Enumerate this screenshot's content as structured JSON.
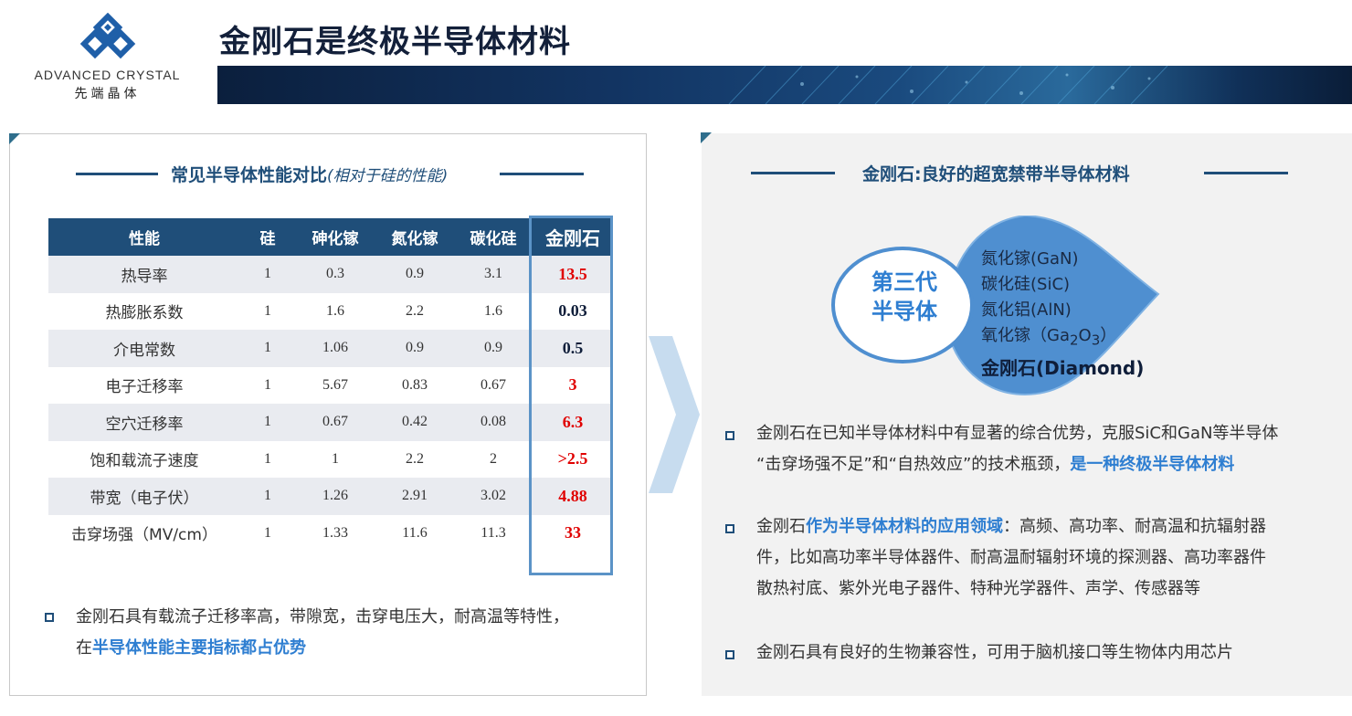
{
  "logo": {
    "en": "ADVANCED CRYSTAL",
    "cn": "先端晶体"
  },
  "title": "金刚石是终极半导体材料",
  "left": {
    "section_title": "常见半导体性能对比",
    "section_title_note": "(相对于硅的性能)",
    "table": {
      "headers": [
        "性能",
        "硅",
        "砷化镓",
        "氮化镓",
        "碳化硅",
        "金刚石"
      ],
      "rows": [
        [
          "热导率",
          "1",
          "0.3",
          "0.9",
          "3.1",
          "13.5"
        ],
        [
          "热膨胀系数",
          "1",
          "1.6",
          "2.2",
          "1.6",
          "0.03"
        ],
        [
          "介电常数",
          "1",
          "1.06",
          "0.9",
          "0.9",
          "0.5"
        ],
        [
          "电子迁移率",
          "1",
          "5.67",
          "0.83",
          "0.67",
          "3"
        ],
        [
          "空穴迁移率",
          "1",
          "0.67",
          "0.42",
          "0.08",
          "6.3"
        ],
        [
          "饱和载流子速度",
          "1",
          "1",
          "2.2",
          "2",
          ">2.5"
        ],
        [
          "带宽（电子伏）",
          "1",
          "1.26",
          "2.91",
          "3.02",
          "4.88"
        ],
        [
          "击穿场强（MV/cm）",
          "1",
          "1.33",
          "11.6",
          "11.3",
          "33"
        ]
      ],
      "diamond_colors": [
        "#e00000",
        "#0f1e3a",
        "#0f1e3a",
        "#e00000",
        "#e00000",
        "#e00000",
        "#e00000",
        "#e00000"
      ]
    },
    "bullet": {
      "text1": "金刚石具有载流子迁移率高，带隙宽，击穿电压大，耐高温等特性，",
      "text2_prefix": "在",
      "text2_highlight": "半导体性能主要指标都占优势"
    }
  },
  "right": {
    "section_title": "金刚石:良好的超宽禁带半导体材料",
    "generation_label_1": "第三代",
    "generation_label_2": "半导体",
    "materials": [
      "氮化镓(GaN)",
      "碳化硅(SiC)",
      "氮化铝(AlN)"
    ],
    "ga2o3_prefix": "氧化镓（Ga",
    "ga2o3_sub1": "2",
    "ga2o3_mid": "O",
    "ga2o3_sub2": "3",
    "ga2o3_suffix": "）",
    "diamond": "金刚石(Diamond)",
    "bullets": [
      {
        "line1": "金刚石在已知半导体材料中有显著的综合优势，克服SiC和GaN等半导体",
        "line2_prefix": "“击穿场强不足”和“自热效应”的技术瓶颈，",
        "line2_highlight": "是一种终极半导体材料"
      },
      {
        "prefix": "金刚石",
        "highlight": "作为半导体材料的应用领域",
        "line1_rest": "：高频、高功率、耐高温和抗辐射器",
        "line2": "件，比如高功率半导体器件、耐高温耐辐射环境的探测器、高功率器件",
        "line3": "散热衬底、紫外光电子器件、特种光学器件、声学、传感器等"
      },
      {
        "text": "金刚石具有良好的生物兼容性，可用于脑机接口等生物体内用芯片"
      }
    ]
  },
  "colors": {
    "primary": "#1f4e79",
    "highlight": "#2e7ed1",
    "red": "#e00000",
    "accent": "#5b93c7"
  }
}
